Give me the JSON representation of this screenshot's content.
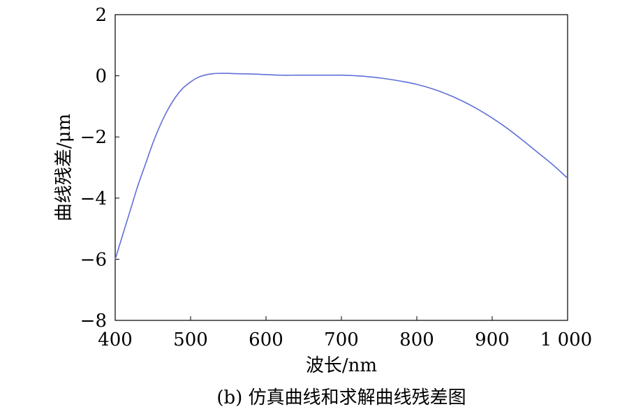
{
  "chart_data": {
    "type": "line",
    "title": "",
    "caption": "(b) 仿真曲线和求解曲线残差图",
    "xlabel": "波长/nm",
    "ylabel": "曲线残差/μm",
    "xlim": [
      400,
      1000
    ],
    "ylim": [
      -8,
      2
    ],
    "xticks": [
      400,
      500,
      600,
      700,
      800,
      900,
      1000
    ],
    "xtick_labels": [
      "400",
      "500",
      "600",
      "700",
      "800",
      "900",
      "1 000"
    ],
    "yticks": [
      2,
      0,
      -2,
      -4,
      -6,
      -8
    ],
    "ytick_labels": [
      "2",
      "0",
      "−2",
      "−4",
      "−6",
      "−8"
    ],
    "grid": false,
    "line_color": "#6070d8",
    "series": [
      {
        "x": [
          400,
          410,
          420,
          430,
          440,
          450,
          460,
          470,
          480,
          490,
          500,
          510,
          520,
          530,
          540,
          550,
          560,
          580,
          600,
          620,
          640,
          660,
          680,
          700,
          720,
          740,
          760,
          780,
          800,
          820,
          840,
          860,
          880,
          900,
          920,
          940,
          960,
          980,
          1000
        ],
        "y": [
          -6.0,
          -5.2,
          -4.4,
          -3.6,
          -2.9,
          -2.2,
          -1.6,
          -1.1,
          -0.7,
          -0.4,
          -0.2,
          -0.05,
          0.03,
          0.07,
          0.08,
          0.08,
          0.07,
          0.06,
          0.04,
          0.02,
          0.02,
          0.02,
          0.02,
          0.02,
          0.0,
          -0.04,
          -0.1,
          -0.18,
          -0.28,
          -0.42,
          -0.6,
          -0.82,
          -1.08,
          -1.38,
          -1.72,
          -2.1,
          -2.5,
          -2.9,
          -3.35
        ]
      }
    ]
  }
}
